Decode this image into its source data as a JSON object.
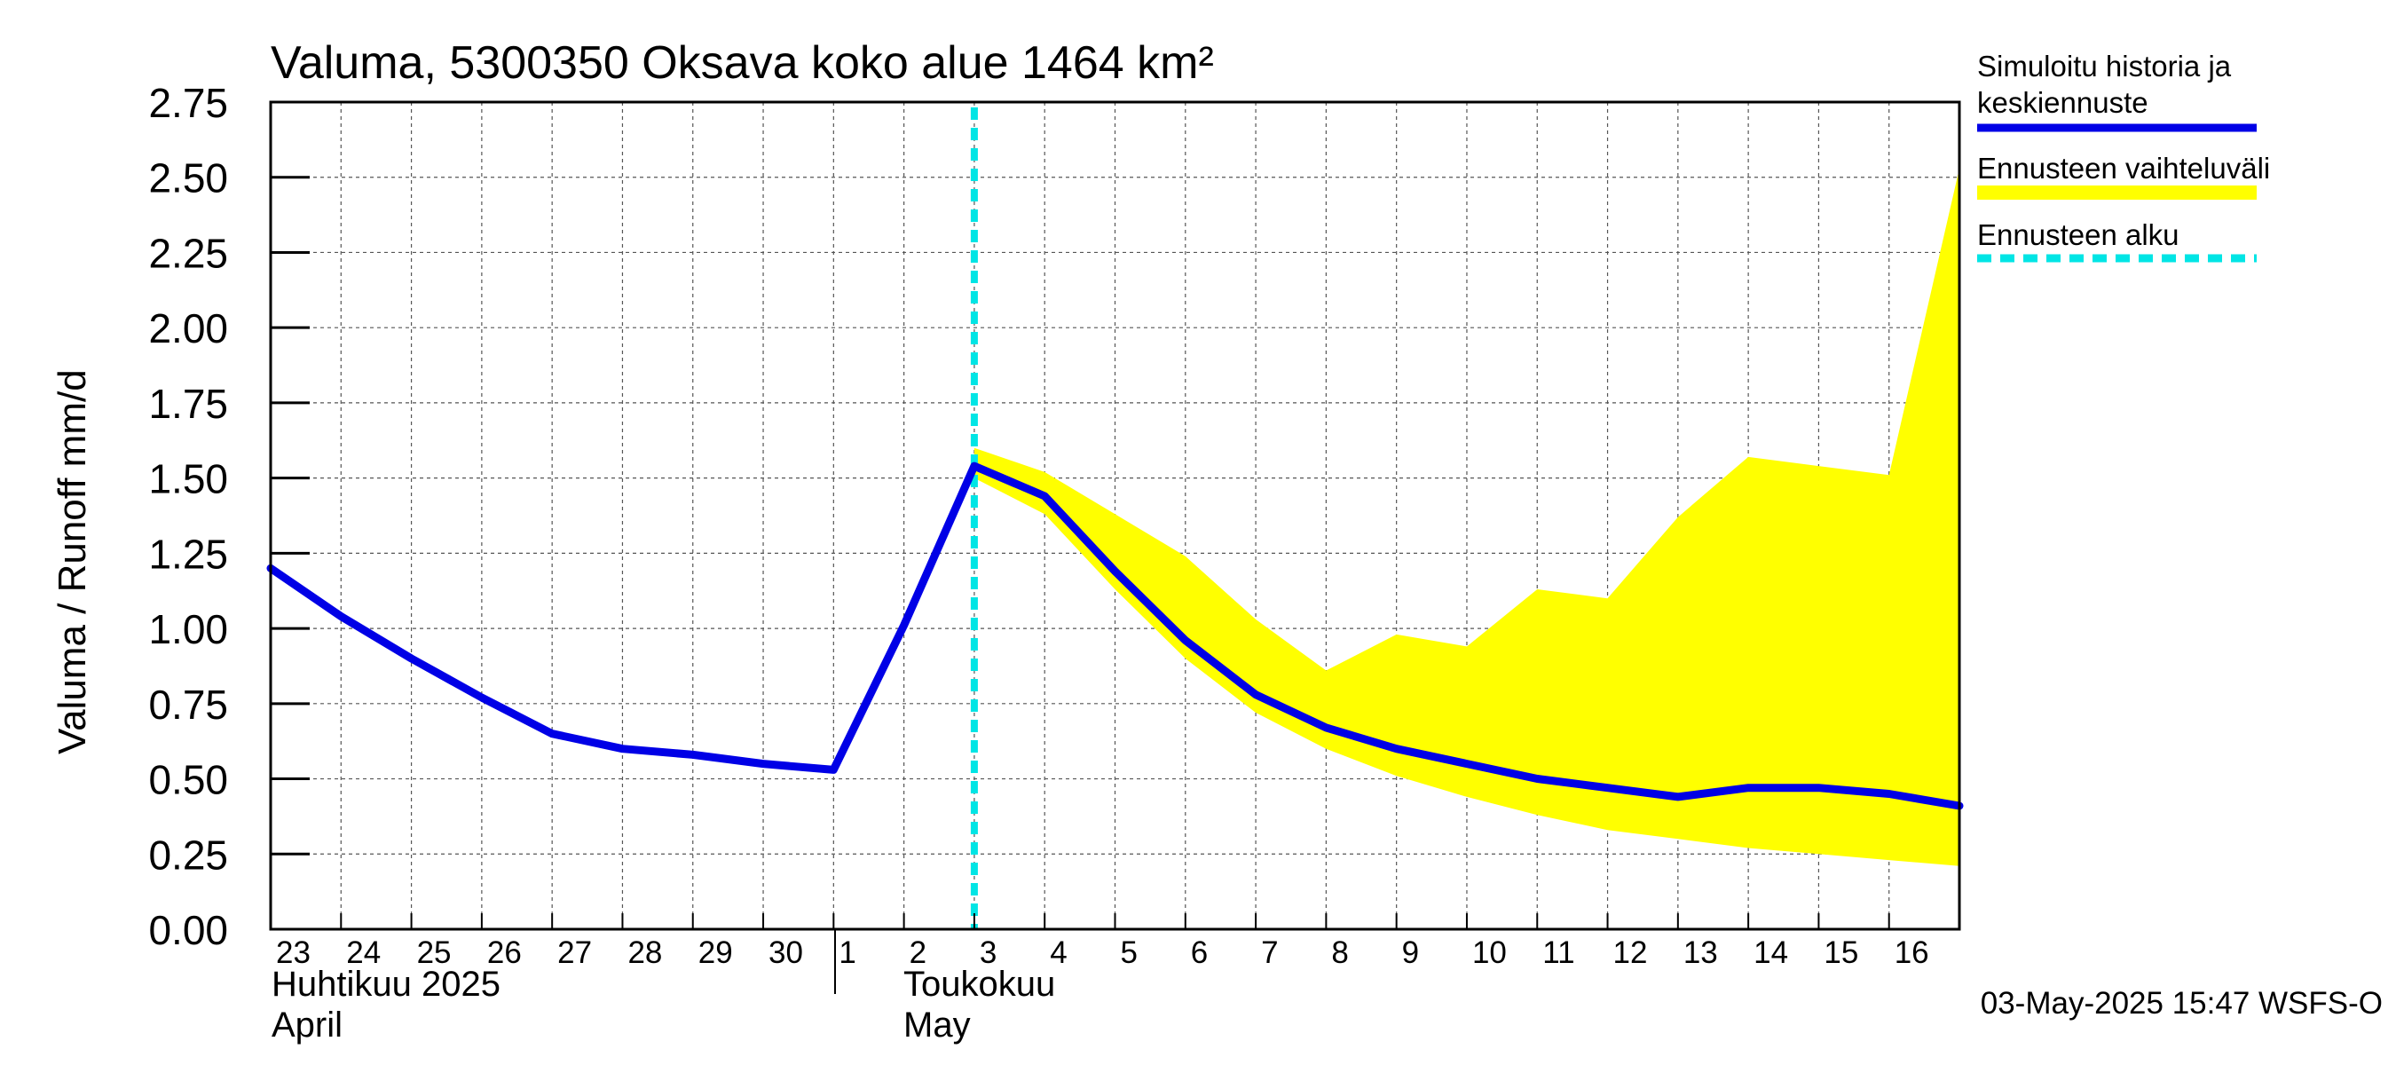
{
  "title": "Valuma, 5300350 Oksava koko alue 1464 km²",
  "ylabel": "Valuma / Runoff     mm/d",
  "timestamp": "03-May-2025 15:47 WSFS-O",
  "month_labels": {
    "april_fi": "Huhtikuu  2025",
    "april_en": "April",
    "may_fi": "Toukokuu",
    "may_en": "May"
  },
  "legend": {
    "simulated": [
      "Simuloitu historia ja",
      "keskiennuste"
    ],
    "range": "Ennusteen vaihteluväli",
    "start": "Ennusteen alku"
  },
  "colors": {
    "line": "#0000e6",
    "band": "#ffff00",
    "forecast_start": "#00e5e5",
    "grid": "#555555"
  },
  "chart_data": {
    "type": "line",
    "title": "Valuma, 5300350 Oksava koko alue 1464 km²",
    "ylabel": "Valuma / Runoff     mm/d",
    "ylim": [
      0,
      2.75
    ],
    "y_ticks": [
      "0.00",
      "0.25",
      "0.50",
      "0.75",
      "1.00",
      "1.25",
      "1.50",
      "1.75",
      "2.00",
      "2.25",
      "2.50",
      "2.75"
    ],
    "x_range": [
      "2025-04-23",
      "2025-05-17"
    ],
    "x_tick_labels": [
      "23",
      "24",
      "25",
      "26",
      "27",
      "28",
      "29",
      "30",
      "1",
      "2",
      "3",
      "4",
      "5",
      "6",
      "7",
      "8",
      "9",
      "10",
      "11",
      "12",
      "13",
      "14",
      "15",
      "16"
    ],
    "grid": true,
    "forecast_start": "2025-05-03",
    "series": [
      {
        "name": "Simuloitu historia ja keskiennuste",
        "x": [
          "2025-04-23",
          "2025-04-24",
          "2025-04-25",
          "2025-04-26",
          "2025-04-27",
          "2025-04-28",
          "2025-04-29",
          "2025-04-30",
          "2025-05-01",
          "2025-05-02",
          "2025-05-03",
          "2025-05-04",
          "2025-05-05",
          "2025-05-06",
          "2025-05-07",
          "2025-05-08",
          "2025-05-09",
          "2025-05-10",
          "2025-05-11",
          "2025-05-12",
          "2025-05-13",
          "2025-05-14",
          "2025-05-15",
          "2025-05-16",
          "2025-05-17"
        ],
        "values": [
          1.2,
          1.04,
          0.9,
          0.77,
          0.65,
          0.6,
          0.58,
          0.55,
          0.53,
          1.01,
          1.54,
          1.44,
          1.19,
          0.96,
          0.78,
          0.67,
          0.6,
          0.55,
          0.5,
          0.47,
          0.44,
          0.47,
          0.47,
          0.45,
          0.41
        ]
      },
      {
        "name": "Ennusteen vaihteluväli",
        "type": "area",
        "x": [
          "2025-05-03",
          "2025-05-04",
          "2025-05-05",
          "2025-05-06",
          "2025-05-07",
          "2025-05-08",
          "2025-05-09",
          "2025-05-10",
          "2025-05-11",
          "2025-05-12",
          "2025-05-13",
          "2025-05-14",
          "2025-05-15",
          "2025-05-16",
          "2025-05-17"
        ],
        "upper": [
          1.6,
          1.52,
          1.38,
          1.24,
          1.03,
          0.86,
          0.98,
          0.94,
          1.13,
          1.1,
          1.37,
          1.57,
          1.54,
          1.51,
          2.53
        ],
        "lower": [
          1.5,
          1.38,
          1.13,
          0.9,
          0.72,
          0.6,
          0.51,
          0.44,
          0.38,
          0.33,
          0.3,
          0.27,
          0.25,
          0.23,
          0.21
        ]
      }
    ]
  }
}
